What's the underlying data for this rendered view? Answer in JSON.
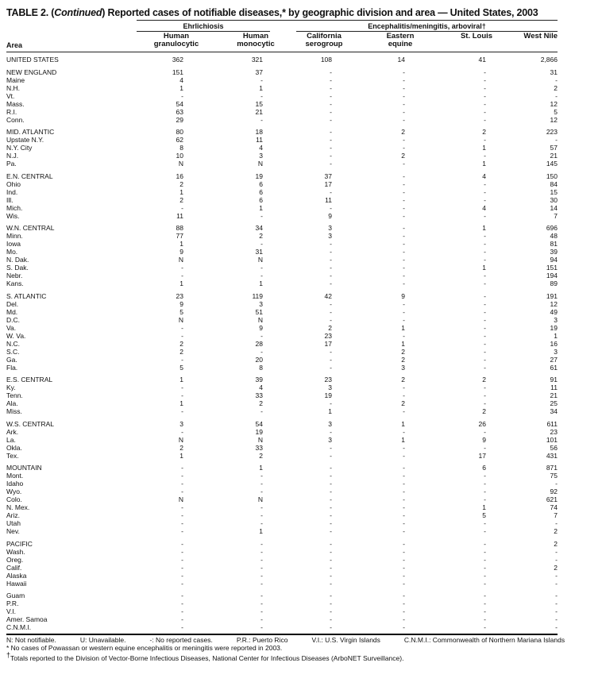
{
  "title": {
    "prefix": "TABLE 2. (",
    "italic": "Continued",
    "suffix": ") Reported cases of notifiable diseases,* by geographic division and area — United States, 2003"
  },
  "headers": {
    "group1": "Ehrlichiosis",
    "group2": "Encephalitis/meningitis, arboviral†",
    "area": "Area",
    "columns": [
      [
        "Human",
        "granulocytic"
      ],
      [
        "Human",
        "monocytic"
      ],
      [
        "California",
        "serogroup"
      ],
      [
        "Eastern",
        "equine"
      ],
      [
        "",
        "St. Louis"
      ],
      [
        "",
        "West Nile"
      ]
    ]
  },
  "groups": [
    [
      [
        "UNITED STATES",
        "362",
        "321",
        "108",
        "14",
        "41",
        "2,866"
      ]
    ],
    [
      [
        "NEW ENGLAND",
        "151",
        "37",
        "-",
        "-",
        "-",
        "31"
      ],
      [
        "Maine",
        "4",
        "-",
        "-",
        "-",
        "-",
        "-"
      ],
      [
        "N.H.",
        "1",
        "1",
        "-",
        "-",
        "-",
        "2"
      ],
      [
        "Vt.",
        "-",
        "-",
        "-",
        "-",
        "-",
        "-"
      ],
      [
        "Mass.",
        "54",
        "15",
        "-",
        "-",
        "-",
        "12"
      ],
      [
        "R.I.",
        "63",
        "21",
        "-",
        "-",
        "-",
        "5"
      ],
      [
        "Conn.",
        "29",
        "-",
        "-",
        "-",
        "-",
        "12"
      ]
    ],
    [
      [
        "MID. ATLANTIC",
        "80",
        "18",
        "-",
        "2",
        "2",
        "223"
      ],
      [
        "Upstate N.Y.",
        "62",
        "11",
        "-",
        "-",
        "-",
        "-"
      ],
      [
        "N.Y. City",
        "8",
        "4",
        "-",
        "-",
        "1",
        "57"
      ],
      [
        "N.J.",
        "10",
        "3",
        "-",
        "2",
        "-",
        "21"
      ],
      [
        "Pa.",
        "N",
        "N",
        "-",
        "-",
        "1",
        "145"
      ]
    ],
    [
      [
        "E.N. CENTRAL",
        "16",
        "19",
        "37",
        "-",
        "4",
        "150"
      ],
      [
        "Ohio",
        "2",
        "6",
        "17",
        "-",
        "-",
        "84"
      ],
      [
        "Ind.",
        "1",
        "6",
        "-",
        "-",
        "-",
        "15"
      ],
      [
        "Ill.",
        "2",
        "6",
        "11",
        "-",
        "-",
        "30"
      ],
      [
        "Mich.",
        "-",
        "1",
        "-",
        "-",
        "4",
        "14"
      ],
      [
        "Wis.",
        "11",
        "-",
        "9",
        "-",
        "-",
        "7"
      ]
    ],
    [
      [
        "W.N. CENTRAL",
        "88",
        "34",
        "3",
        "-",
        "1",
        "696"
      ],
      [
        "Minn.",
        "77",
        "2",
        "3",
        "-",
        "-",
        "48"
      ],
      [
        "Iowa",
        "1",
        "-",
        "-",
        "-",
        "-",
        "81"
      ],
      [
        "Mo.",
        "9",
        "31",
        "-",
        "-",
        "-",
        "39"
      ],
      [
        "N. Dak.",
        "N",
        "N",
        "-",
        "-",
        "-",
        "94"
      ],
      [
        "S. Dak.",
        "-",
        "-",
        "-",
        "-",
        "1",
        "151"
      ],
      [
        "Nebr.",
        "-",
        "-",
        "-",
        "-",
        "-",
        "194"
      ],
      [
        "Kans.",
        "1",
        "1",
        "-",
        "-",
        "-",
        "89"
      ]
    ],
    [
      [
        "S. ATLANTIC",
        "23",
        "119",
        "42",
        "9",
        "-",
        "191"
      ],
      [
        "Del.",
        "9",
        "3",
        "-",
        "-",
        "-",
        "12"
      ],
      [
        "Md.",
        "5",
        "51",
        "-",
        "-",
        "-",
        "49"
      ],
      [
        "D.C.",
        "N",
        "N",
        "-",
        "-",
        "-",
        "3"
      ],
      [
        "Va.",
        "-",
        "9",
        "2",
        "1",
        "-",
        "19"
      ],
      [
        "W. Va.",
        "-",
        "-",
        "23",
        "-",
        "-",
        "1"
      ],
      [
        "N.C.",
        "2",
        "28",
        "17",
        "1",
        "-",
        "16"
      ],
      [
        "S.C.",
        "2",
        "-",
        "-",
        "2",
        "-",
        "3"
      ],
      [
        "Ga.",
        "-",
        "20",
        "-",
        "2",
        "-",
        "27"
      ],
      [
        "Fla.",
        "5",
        "8",
        "-",
        "3",
        "-",
        "61"
      ]
    ],
    [
      [
        "E.S. CENTRAL",
        "1",
        "39",
        "23",
        "2",
        "2",
        "91"
      ],
      [
        "Ky.",
        "-",
        "4",
        "3",
        "-",
        "-",
        "11"
      ],
      [
        "Tenn.",
        "-",
        "33",
        "19",
        "-",
        "-",
        "21"
      ],
      [
        "Ala.",
        "1",
        "2",
        "-",
        "2",
        "-",
        "25"
      ],
      [
        "Miss.",
        "-",
        "-",
        "1",
        "-",
        "2",
        "34"
      ]
    ],
    [
      [
        "W.S. CENTRAL",
        "3",
        "54",
        "3",
        "1",
        "26",
        "611"
      ],
      [
        "Ark.",
        "-",
        "19",
        "-",
        "-",
        "-",
        "23"
      ],
      [
        "La.",
        "N",
        "N",
        "3",
        "1",
        "9",
        "101"
      ],
      [
        "Okla.",
        "2",
        "33",
        "-",
        "-",
        "-",
        "56"
      ],
      [
        "Tex.",
        "1",
        "2",
        "-",
        "-",
        "17",
        "431"
      ]
    ],
    [
      [
        "MOUNTAIN",
        "-",
        "1",
        "-",
        "-",
        "6",
        "871"
      ],
      [
        "Mont.",
        "-",
        "-",
        "-",
        "-",
        "-",
        "75"
      ],
      [
        "Idaho",
        "-",
        "-",
        "-",
        "-",
        "-",
        "-"
      ],
      [
        "Wyo.",
        "-",
        "-",
        "-",
        "-",
        "-",
        "92"
      ],
      [
        "Colo.",
        "N",
        "N",
        "-",
        "-",
        "-",
        "621"
      ],
      [
        "N. Mex.",
        "-",
        "-",
        "-",
        "-",
        "1",
        "74"
      ],
      [
        "Ariz.",
        "-",
        "-",
        "-",
        "-",
        "5",
        "7"
      ],
      [
        "Utah",
        "-",
        "-",
        "-",
        "-",
        "-",
        "-"
      ],
      [
        "Nev.",
        "-",
        "1",
        "-",
        "-",
        "-",
        "2"
      ]
    ],
    [
      [
        "PACIFIC",
        "-",
        "-",
        "-",
        "-",
        "-",
        "2"
      ],
      [
        "Wash.",
        "-",
        "-",
        "-",
        "-",
        "-",
        "-"
      ],
      [
        "Oreg.",
        "-",
        "-",
        "-",
        "-",
        "-",
        "-"
      ],
      [
        "Calif.",
        "-",
        "-",
        "-",
        "-",
        "-",
        "2"
      ],
      [
        "Alaska",
        "-",
        "-",
        "-",
        "-",
        "-",
        "-"
      ],
      [
        "Hawaii",
        "-",
        "-",
        "-",
        "-",
        "-",
        "-"
      ]
    ],
    [
      [
        "Guam",
        "-",
        "-",
        "-",
        "-",
        "-",
        "-"
      ],
      [
        "P.R.",
        "-",
        "-",
        "-",
        "-",
        "-",
        "-"
      ],
      [
        "V.I.",
        "-",
        "-",
        "-",
        "-",
        "-",
        "-"
      ],
      [
        "Amer. Samoa",
        "-",
        "-",
        "-",
        "-",
        "-",
        "-"
      ],
      [
        "C.N.M.I.",
        "-",
        "-",
        "-",
        "-",
        "-",
        "-"
      ]
    ]
  ],
  "footnotes": {
    "legend": [
      "N: Not notifiable.",
      "U: Unavailable.",
      "-: No reported cases.",
      "P.R.: Puerto Rico",
      "V.I.: U.S. Virgin Islands",
      "C.N.M.I.: Commonwealth of Northern Mariana Islands"
    ],
    "star": "* No cases of Powassan or western equine encephalitis or meningitis were reported in 2003.",
    "dagger_mark": "†",
    "dagger": "Totals reported to the Division of Vector-Borne Infectious Diseases, National Center for Infectious Diseases (ArboNET Surveillance)."
  }
}
